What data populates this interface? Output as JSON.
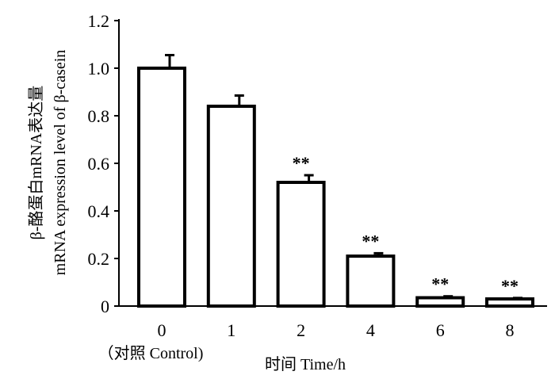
{
  "chart_data": {
    "type": "bar",
    "categories": [
      "0",
      "1",
      "2",
      "4",
      "6",
      "8"
    ],
    "category_note": "（对照 Control)",
    "values": [
      1.0,
      0.84,
      0.52,
      0.21,
      0.035,
      0.03
    ],
    "errors": [
      0.055,
      0.045,
      0.03,
      0.012,
      0.006,
      0.004
    ],
    "significance": [
      "",
      "",
      "**",
      "**",
      "**",
      "**"
    ],
    "ylim": [
      0,
      1.2
    ],
    "yticks": [
      "0",
      "0.2",
      "0.4",
      "0.6",
      "0.8",
      "1.0",
      "1.2"
    ],
    "ylabel_line1": "β-酪蛋白mRNA表达量",
    "ylabel_line2": "mRNA expression level of β-casein",
    "xlabel": "时间  Time/h",
    "grid": false,
    "bar_fill": "#ffffff",
    "bar_stroke": "#000000"
  }
}
